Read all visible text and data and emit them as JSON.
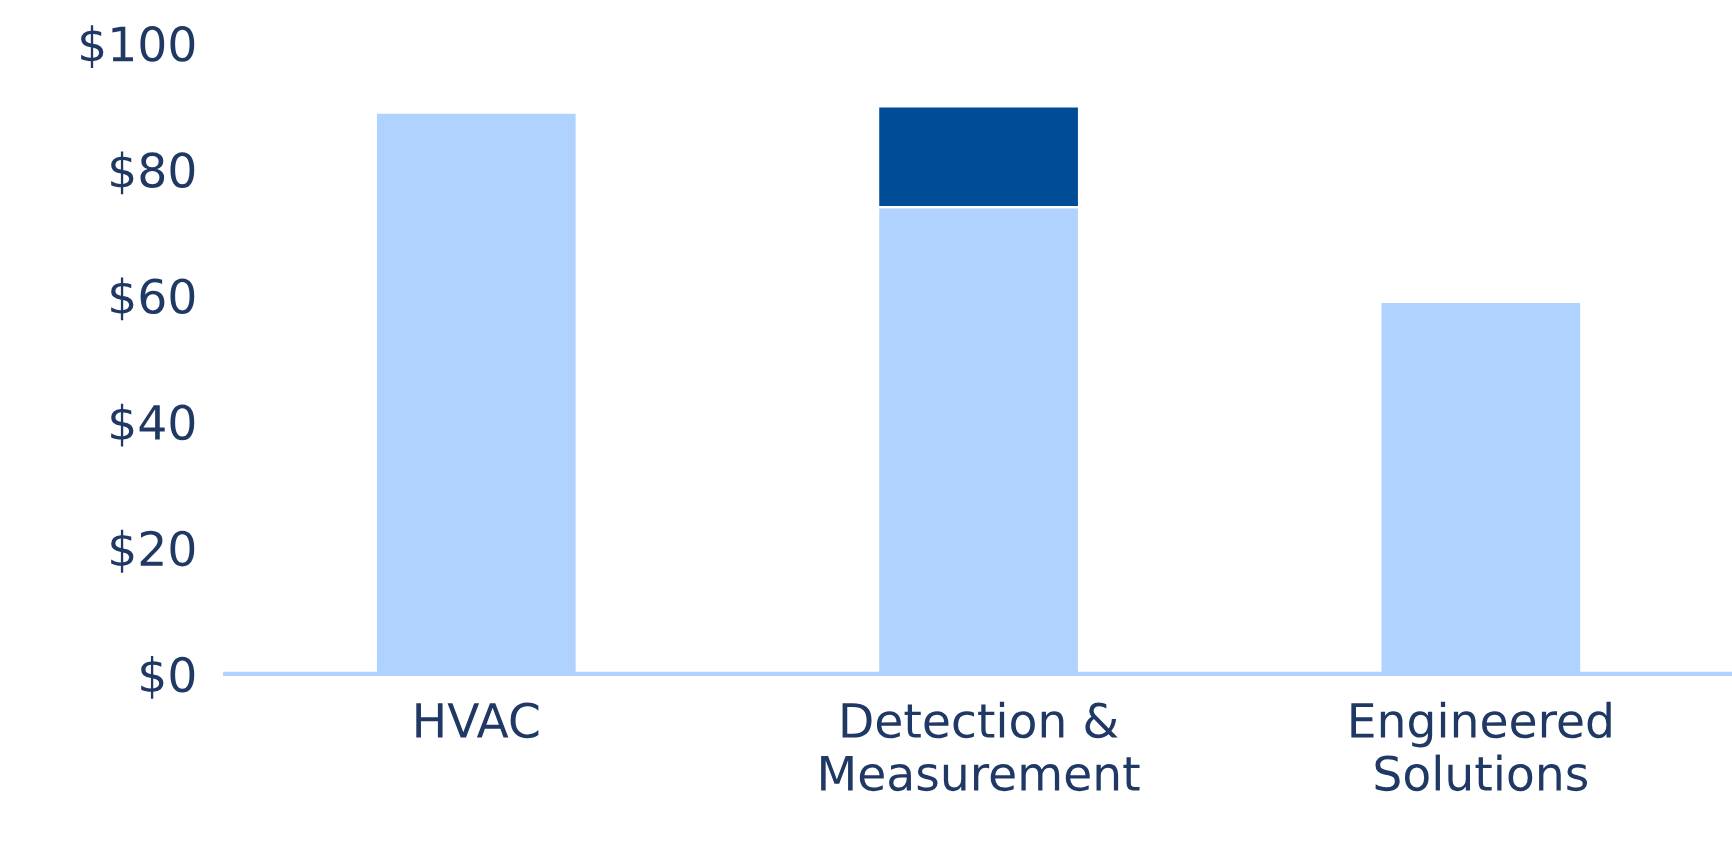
{
  "chart_data": {
    "type": "bar",
    "stacked": true,
    "categories": [
      "HVAC",
      "Detection &\nMeasurement",
      "Engineered\nSolutions"
    ],
    "series": [
      {
        "color": "#b0d2fe",
        "values": [
          89,
          74,
          59
        ]
      },
      {
        "color": "#004c97",
        "values": [
          null,
          16,
          null
        ]
      }
    ],
    "ylim": [
      0,
      100
    ],
    "yticks": [
      {
        "value": 0,
        "label": "$0"
      },
      {
        "value": 20,
        "label": "$20"
      },
      {
        "value": 40,
        "label": "$40"
      },
      {
        "value": 60,
        "label": "$60"
      },
      {
        "value": 80,
        "label": "$80"
      },
      {
        "value": 100,
        "label": "$100"
      }
    ],
    "grid": false,
    "legend": false
  }
}
